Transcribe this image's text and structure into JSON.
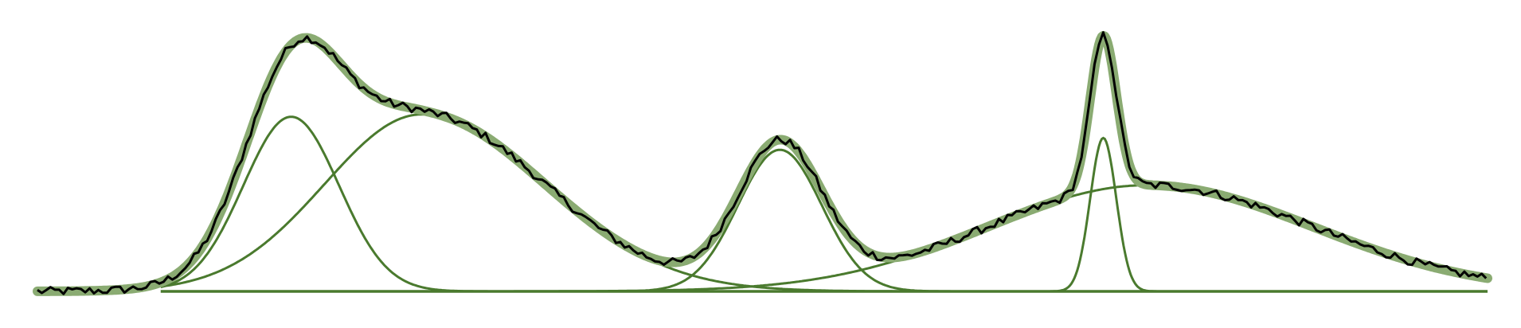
{
  "chart_data": {
    "type": "line",
    "title": "",
    "xlabel": "",
    "ylabel": "",
    "xlim": [
      0,
      1000
    ],
    "ylim": [
      0,
      1.1
    ],
    "grid": false,
    "legend": "none",
    "baseline": 0,
    "series": [
      {
        "role": "component",
        "shape": "gaussian",
        "center": 175,
        "amplitude": 0.74,
        "sigma_left": 33,
        "sigma_right": 33
      },
      {
        "role": "component",
        "shape": "gaussian",
        "center": 265,
        "amplitude": 0.75,
        "sigma_left": 67,
        "sigma_right": 85
      },
      {
        "role": "component",
        "shape": "gaussian",
        "center": 512,
        "amplitude": 0.6,
        "sigma_left": 29,
        "sigma_right": 29
      },
      {
        "role": "component",
        "shape": "gaussian",
        "center": 735,
        "amplitude": 0.65,
        "sigma_left": 9,
        "sigma_right": 9
      },
      {
        "role": "component",
        "shape": "gaussian",
        "center": 765,
        "amplitude": 0.45,
        "sigma_left": 110,
        "sigma_right": 115
      },
      {
        "role": "fit",
        "shape": "sum of components"
      },
      {
        "role": "measured",
        "noise": 0.018,
        "step": 3
      }
    ],
    "colors": {
      "component": "#4a7a2e",
      "fit": "#8aab72",
      "measured": "#000000",
      "baseline": "#4a7a2e"
    }
  }
}
